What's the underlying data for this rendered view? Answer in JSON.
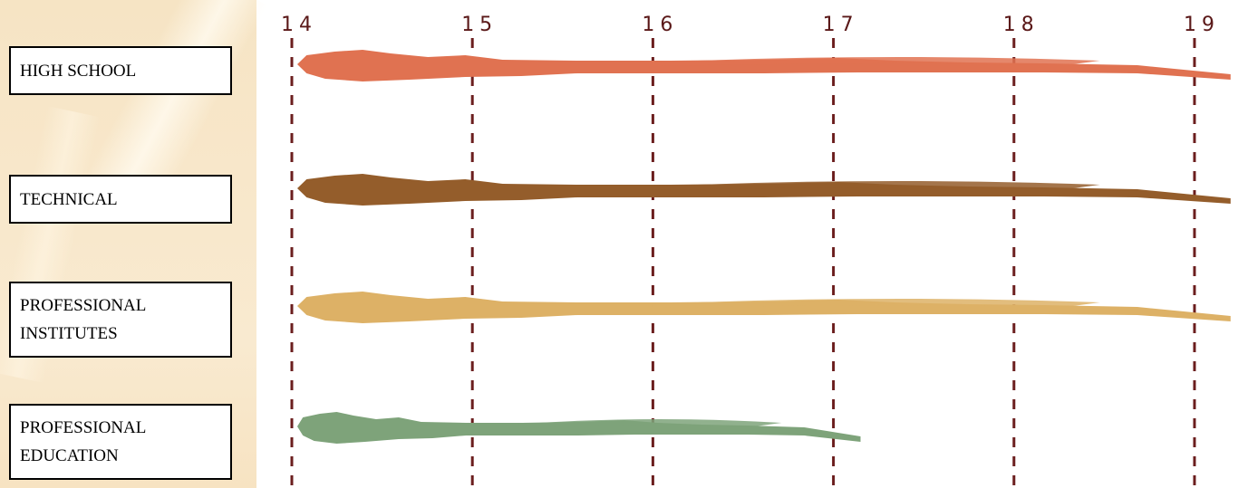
{
  "rows": [
    {
      "line1": "HIGH SCHOOL",
      "line2": "",
      "start": 14,
      "end": 19.2,
      "color": "#e07251"
    },
    {
      "line1": "TECHNICAL",
      "line2": "",
      "start": 14,
      "end": 19.2,
      "color": "#945d2b"
    },
    {
      "line1": "PROFESSIONAL",
      "line2": "INSTITUTES",
      "start": 14,
      "end": 19.2,
      "color": "#ddb166"
    },
    {
      "line1": "PROFESSIONAL",
      "line2": "EDUCATION",
      "start": 14,
      "end": 17.15,
      "color": "#7ea37a"
    }
  ],
  "axis": {
    "ticks": [
      "14",
      "15",
      "16",
      "17",
      "18",
      "19"
    ],
    "min": 14,
    "max": 19,
    "line_color": "#6b1e1e"
  }
}
